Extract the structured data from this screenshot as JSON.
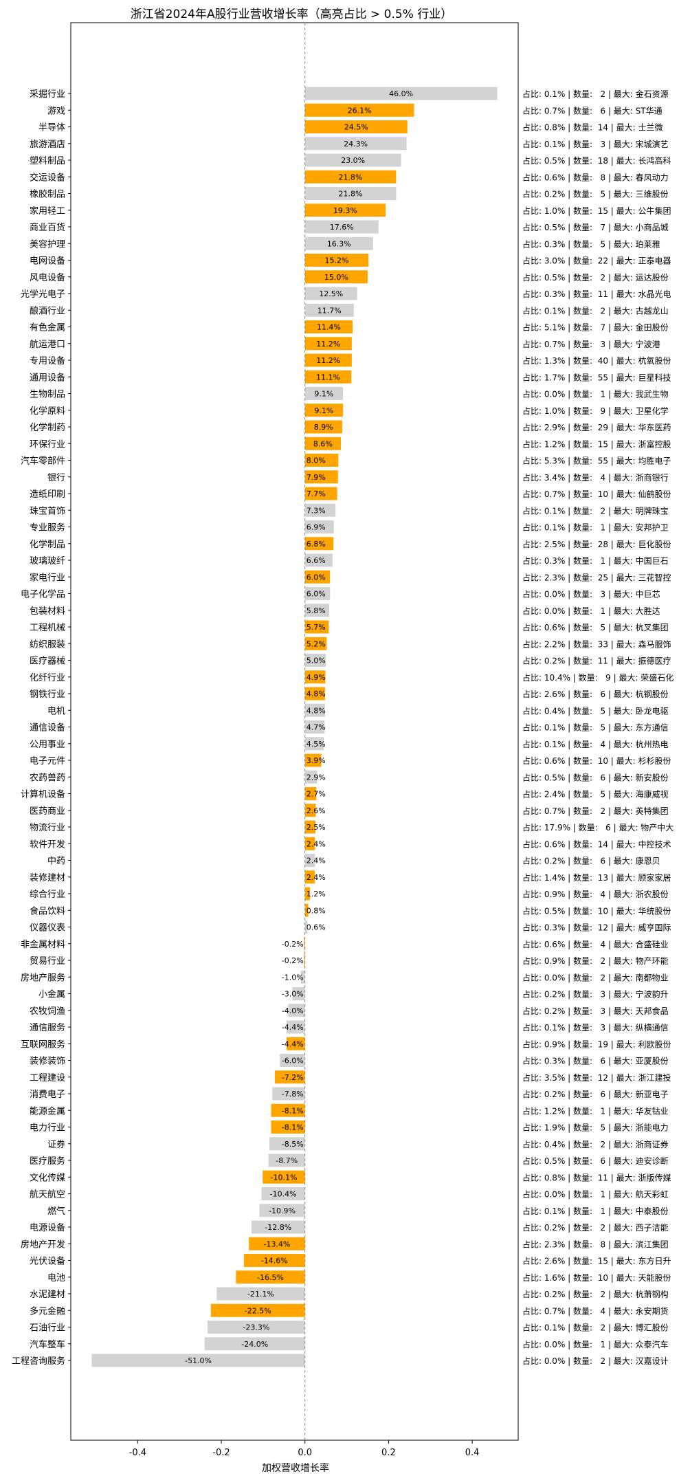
{
  "chart_data": {
    "type": "bar",
    "orientation": "horizontal",
    "title": "浙江省2024年A股行业营收增长率（高亮占比 > 0.5% 行业）",
    "xlabel": "加权营收增长率",
    "ylabel": "",
    "xlim": [
      -0.56,
      0.51
    ],
    "xticks": [
      -0.4,
      -0.2,
      0.0,
      0.2,
      0.4
    ],
    "xtick_labels": [
      "-0.4",
      "-0.2",
      "0.0",
      "0.2",
      "0.4"
    ],
    "zero_line": "dashed",
    "grid": false,
    "legend": "none",
    "colors": {
      "highlight": "#FFA500",
      "normal": "#D3D3D3",
      "zero_line": "#888888"
    },
    "rows": [
      {
        "category": "采掘行业",
        "value": 0.46,
        "label": "46.0%",
        "highlight": false,
        "info": "占比: 0.1% | 数量:   2 | 最大: 金石资源"
      },
      {
        "category": "游戏",
        "value": 0.261,
        "label": "26.1%",
        "highlight": true,
        "info": "占比: 0.7% | 数量:   6 | 最大: ST华通"
      },
      {
        "category": "半导体",
        "value": 0.245,
        "label": "24.5%",
        "highlight": true,
        "info": "占比: 0.8% | 数量:  14 | 最大: 士兰微"
      },
      {
        "category": "旅游酒店",
        "value": 0.243,
        "label": "24.3%",
        "highlight": false,
        "info": "占比: 0.1% | 数量:   3 | 最大: 宋城演艺"
      },
      {
        "category": "塑料制品",
        "value": 0.23,
        "label": "23.0%",
        "highlight": false,
        "info": "占比: 0.5% | 数量:  18 | 最大: 长鸿高科"
      },
      {
        "category": "交运设备",
        "value": 0.218,
        "label": "21.8%",
        "highlight": true,
        "info": "占比: 0.6% | 数量:   8 | 最大: 春风动力"
      },
      {
        "category": "橡胶制品",
        "value": 0.218,
        "label": "21.8%",
        "highlight": false,
        "info": "占比: 0.2% | 数量:   5 | 最大: 三维股份"
      },
      {
        "category": "家用轻工",
        "value": 0.193,
        "label": "19.3%",
        "highlight": true,
        "info": "占比: 1.0% | 数量:  15 | 最大: 公牛集团"
      },
      {
        "category": "商业百货",
        "value": 0.176,
        "label": "17.6%",
        "highlight": false,
        "info": "占比: 0.5% | 数量:   7 | 最大: 小商品城"
      },
      {
        "category": "美容护理",
        "value": 0.163,
        "label": "16.3%",
        "highlight": false,
        "info": "占比: 0.3% | 数量:   5 | 最大: 珀莱雅"
      },
      {
        "category": "电网设备",
        "value": 0.152,
        "label": "15.2%",
        "highlight": true,
        "info": "占比: 3.0% | 数量:  22 | 最大: 正泰电器"
      },
      {
        "category": "风电设备",
        "value": 0.15,
        "label": "15.0%",
        "highlight": true,
        "info": "占比: 0.5% | 数量:   2 | 最大: 运达股份"
      },
      {
        "category": "光学光电子",
        "value": 0.125,
        "label": "12.5%",
        "highlight": false,
        "info": "占比: 0.3% | 数量:  11 | 最大: 水晶光电"
      },
      {
        "category": "酿酒行业",
        "value": 0.117,
        "label": "11.7%",
        "highlight": false,
        "info": "占比: 0.1% | 数量:   2 | 最大: 古越龙山"
      },
      {
        "category": "有色金属",
        "value": 0.114,
        "label": "11.4%",
        "highlight": true,
        "info": "占比: 5.1% | 数量:   7 | 最大: 金田股份"
      },
      {
        "category": "航运港口",
        "value": 0.112,
        "label": "11.2%",
        "highlight": true,
        "info": "占比: 0.7% | 数量:   3 | 最大: 宁波港"
      },
      {
        "category": "专用设备",
        "value": 0.112,
        "label": "11.2%",
        "highlight": true,
        "info": "占比: 1.3% | 数量:  40 | 最大: 杭氧股份"
      },
      {
        "category": "通用设备",
        "value": 0.111,
        "label": "11.1%",
        "highlight": true,
        "info": "占比: 1.7% | 数量:  55 | 最大: 巨星科技"
      },
      {
        "category": "生物制品",
        "value": 0.091,
        "label": "9.1%",
        "highlight": false,
        "info": "占比: 0.0% | 数量:   1 | 最大: 我武生物"
      },
      {
        "category": "化学原料",
        "value": 0.091,
        "label": "9.1%",
        "highlight": true,
        "info": "占比: 1.0% | 数量:   9 | 最大: 卫星化学"
      },
      {
        "category": "化学制药",
        "value": 0.089,
        "label": "8.9%",
        "highlight": true,
        "info": "占比: 2.9% | 数量:  29 | 最大: 华东医药"
      },
      {
        "category": "环保行业",
        "value": 0.086,
        "label": "8.6%",
        "highlight": true,
        "info": "占比: 1.2% | 数量:  15 | 最大: 浙富控股"
      },
      {
        "category": "汽车零部件",
        "value": 0.08,
        "label": "8.0%",
        "highlight": true,
        "info": "占比: 5.3% | 数量:  55 | 最大: 均胜电子"
      },
      {
        "category": "银行",
        "value": 0.079,
        "label": "7.9%",
        "highlight": true,
        "info": "占比: 3.4% | 数量:   4 | 最大: 浙商银行"
      },
      {
        "category": "造纸印刷",
        "value": 0.077,
        "label": "7.7%",
        "highlight": true,
        "info": "占比: 0.7% | 数量:  10 | 最大: 仙鹤股份"
      },
      {
        "category": "珠宝首饰",
        "value": 0.073,
        "label": "7.3%",
        "highlight": false,
        "info": "占比: 0.1% | 数量:   2 | 最大: 明牌珠宝"
      },
      {
        "category": "专业服务",
        "value": 0.069,
        "label": "6.9%",
        "highlight": false,
        "info": "占比: 0.1% | 数量:   1 | 最大: 安邦护卫"
      },
      {
        "category": "化学制品",
        "value": 0.068,
        "label": "6.8%",
        "highlight": true,
        "info": "占比: 2.5% | 数量:  28 | 最大: 巨化股份"
      },
      {
        "category": "玻璃玻纤",
        "value": 0.066,
        "label": "6.6%",
        "highlight": false,
        "info": "占比: 0.3% | 数量:   1 | 最大: 中国巨石"
      },
      {
        "category": "家电行业",
        "value": 0.06,
        "label": "6.0%",
        "highlight": true,
        "info": "占比: 2.3% | 数量:  25 | 最大: 三花智控"
      },
      {
        "category": "电子化学品",
        "value": 0.06,
        "label": "6.0%",
        "highlight": false,
        "info": "占比: 0.0% | 数量:   3 | 最大: 中巨芯"
      },
      {
        "category": "包装材料",
        "value": 0.058,
        "label": "5.8%",
        "highlight": false,
        "info": "占比: 0.0% | 数量:   1 | 最大: 大胜达"
      },
      {
        "category": "工程机械",
        "value": 0.057,
        "label": "5.7%",
        "highlight": true,
        "info": "占比: 0.6% | 数量:   5 | 最大: 杭叉集团"
      },
      {
        "category": "纺织服装",
        "value": 0.052,
        "label": "5.2%",
        "highlight": true,
        "info": "占比: 2.2% | 数量:  33 | 最大: 森马服饰"
      },
      {
        "category": "医疗器械",
        "value": 0.05,
        "label": "5.0%",
        "highlight": false,
        "info": "占比: 0.2% | 数量:  11 | 最大: 振德医疗"
      },
      {
        "category": "化纤行业",
        "value": 0.049,
        "label": "4.9%",
        "highlight": true,
        "info": "占比: 10.4% | 数量:   9 | 最大: 荣盛石化"
      },
      {
        "category": "钢铁行业",
        "value": 0.048,
        "label": "4.8%",
        "highlight": true,
        "info": "占比: 2.6% | 数量:   6 | 最大: 杭钢股份"
      },
      {
        "category": "电机",
        "value": 0.048,
        "label": "4.8%",
        "highlight": false,
        "info": "占比: 0.4% | 数量:   5 | 最大: 卧龙电驱"
      },
      {
        "category": "通信设备",
        "value": 0.047,
        "label": "4.7%",
        "highlight": false,
        "info": "占比: 0.1% | 数量:   5 | 最大: 东方通信"
      },
      {
        "category": "公用事业",
        "value": 0.045,
        "label": "4.5%",
        "highlight": false,
        "info": "占比: 0.1% | 数量:   4 | 最大: 杭州热电"
      },
      {
        "category": "电子元件",
        "value": 0.039,
        "label": "3.9%",
        "highlight": true,
        "info": "占比: 0.6% | 数量:  10 | 最大: 杉杉股份"
      },
      {
        "category": "农药兽药",
        "value": 0.029,
        "label": "2.9%",
        "highlight": false,
        "info": "占比: 0.5% | 数量:   6 | 最大: 新安股份"
      },
      {
        "category": "计算机设备",
        "value": 0.027,
        "label": "2.7%",
        "highlight": true,
        "info": "占比: 2.4% | 数量:   5 | 最大: 海康威视"
      },
      {
        "category": "医药商业",
        "value": 0.026,
        "label": "2.6%",
        "highlight": true,
        "info": "占比: 0.7% | 数量:   2 | 最大: 英特集团"
      },
      {
        "category": "物流行业",
        "value": 0.025,
        "label": "2.5%",
        "highlight": true,
        "info": "占比: 17.9% | 数量:   6 | 最大: 物产中大"
      },
      {
        "category": "软件开发",
        "value": 0.024,
        "label": "2.4%",
        "highlight": true,
        "info": "占比: 0.6% | 数量:  14 | 最大: 中控技术"
      },
      {
        "category": "中药",
        "value": 0.024,
        "label": "2.4%",
        "highlight": false,
        "info": "占比: 0.2% | 数量:   6 | 最大: 康恩贝"
      },
      {
        "category": "装修建材",
        "value": 0.024,
        "label": "2.4%",
        "highlight": true,
        "info": "占比: 1.4% | 数量:  13 | 最大: 顾家家居"
      },
      {
        "category": "综合行业",
        "value": 0.012,
        "label": "1.2%",
        "highlight": true,
        "info": "占比: 0.9% | 数量:   4 | 最大: 浙农股份"
      },
      {
        "category": "食品饮料",
        "value": 0.008,
        "label": "0.8%",
        "highlight": true,
        "info": "占比: 0.5% | 数量:  10 | 最大: 华统股份"
      },
      {
        "category": "仪器仪表",
        "value": 0.006,
        "label": "0.6%",
        "highlight": false,
        "info": "占比: 0.3% | 数量:  12 | 最大: 威亨国际"
      },
      {
        "category": "非金属材料",
        "value": -0.002,
        "label": "-0.2%",
        "highlight": true,
        "info": "占比: 0.6% | 数量:   4 | 最大: 合盛硅业"
      },
      {
        "category": "贸易行业",
        "value": -0.002,
        "label": "-0.2%",
        "highlight": true,
        "info": "占比: 0.9% | 数量:   2 | 最大: 物产环能"
      },
      {
        "category": "房地产服务",
        "value": -0.01,
        "label": "-1.0%",
        "highlight": false,
        "info": "占比: 0.0% | 数量:   2 | 最大: 南都物业"
      },
      {
        "category": "小金属",
        "value": -0.03,
        "label": "-3.0%",
        "highlight": false,
        "info": "占比: 0.2% | 数量:   3 | 最大: 宁波韵升"
      },
      {
        "category": "农牧饲渔",
        "value": -0.04,
        "label": "-4.0%",
        "highlight": false,
        "info": "占比: 0.2% | 数量:   3 | 最大: 天邦食品"
      },
      {
        "category": "通信服务",
        "value": -0.044,
        "label": "-4.4%",
        "highlight": false,
        "info": "占比: 0.1% | 数量:   3 | 最大: 纵横通信"
      },
      {
        "category": "互联网服务",
        "value": -0.044,
        "label": "-4.4%",
        "highlight": true,
        "info": "占比: 0.9% | 数量:  19 | 最大: 利欧股份"
      },
      {
        "category": "装修装饰",
        "value": -0.06,
        "label": "-6.0%",
        "highlight": false,
        "info": "占比: 0.3% | 数量:   6 | 最大: 亚厦股份"
      },
      {
        "category": "工程建设",
        "value": -0.072,
        "label": "-7.2%",
        "highlight": true,
        "info": "占比: 3.5% | 数量:  12 | 最大: 浙江建投"
      },
      {
        "category": "消费电子",
        "value": -0.078,
        "label": "-7.8%",
        "highlight": false,
        "info": "占比: 0.2% | 数量:   6 | 最大: 新亚电子"
      },
      {
        "category": "能源金属",
        "value": -0.081,
        "label": "-8.1%",
        "highlight": true,
        "info": "占比: 1.2% | 数量:   1 | 最大: 华友钴业"
      },
      {
        "category": "电力行业",
        "value": -0.081,
        "label": "-8.1%",
        "highlight": true,
        "info": "占比: 1.9% | 数量:   5 | 最大: 浙能电力"
      },
      {
        "category": "证券",
        "value": -0.085,
        "label": "-8.5%",
        "highlight": false,
        "info": "占比: 0.4% | 数量:   2 | 最大: 浙商证券"
      },
      {
        "category": "医疗服务",
        "value": -0.087,
        "label": "-8.7%",
        "highlight": false,
        "info": "占比: 0.5% | 数量:   6 | 最大: 迪安诊断"
      },
      {
        "category": "文化传媒",
        "value": -0.101,
        "label": "-10.1%",
        "highlight": true,
        "info": "占比: 0.8% | 数量:  11 | 最大: 浙版传媒"
      },
      {
        "category": "航天航空",
        "value": -0.104,
        "label": "-10.4%",
        "highlight": false,
        "info": "占比: 0.0% | 数量:   1 | 最大: 航天彩虹"
      },
      {
        "category": "燃气",
        "value": -0.109,
        "label": "-10.9%",
        "highlight": false,
        "info": "占比: 0.1% | 数量:   1 | 最大: 中泰股份"
      },
      {
        "category": "电源设备",
        "value": -0.128,
        "label": "-12.8%",
        "highlight": false,
        "info": "占比: 0.2% | 数量:   2 | 最大: 西子洁能"
      },
      {
        "category": "房地产开发",
        "value": -0.134,
        "label": "-13.4%",
        "highlight": true,
        "info": "占比: 2.3% | 数量:   8 | 最大: 滨江集团"
      },
      {
        "category": "光伏设备",
        "value": -0.146,
        "label": "-14.6%",
        "highlight": true,
        "info": "占比: 2.6% | 数量:  15 | 最大: 东方日升"
      },
      {
        "category": "电池",
        "value": -0.165,
        "label": "-16.5%",
        "highlight": true,
        "info": "占比: 1.6% | 数量:  10 | 最大: 天能股份"
      },
      {
        "category": "水泥建材",
        "value": -0.211,
        "label": "-21.1%",
        "highlight": false,
        "info": "占比: 0.2% | 数量:   2 | 最大: 杭萧钢构"
      },
      {
        "category": "多元金融",
        "value": -0.225,
        "label": "-22.5%",
        "highlight": true,
        "info": "占比: 0.7% | 数量:   4 | 最大: 永安期货"
      },
      {
        "category": "石油行业",
        "value": -0.233,
        "label": "-23.3%",
        "highlight": false,
        "info": "占比: 0.1% | 数量:   2 | 最大: 博汇股份"
      },
      {
        "category": "汽车整车",
        "value": -0.24,
        "label": "-24.0%",
        "highlight": false,
        "info": "占比: 0.0% | 数量:   1 | 最大: 众泰汽车"
      },
      {
        "category": "工程咨询服务",
        "value": -0.51,
        "label": "-51.0%",
        "highlight": false,
        "info": "占比: 0.0% | 数量:   2 | 最大: 汉嘉设计"
      }
    ]
  }
}
